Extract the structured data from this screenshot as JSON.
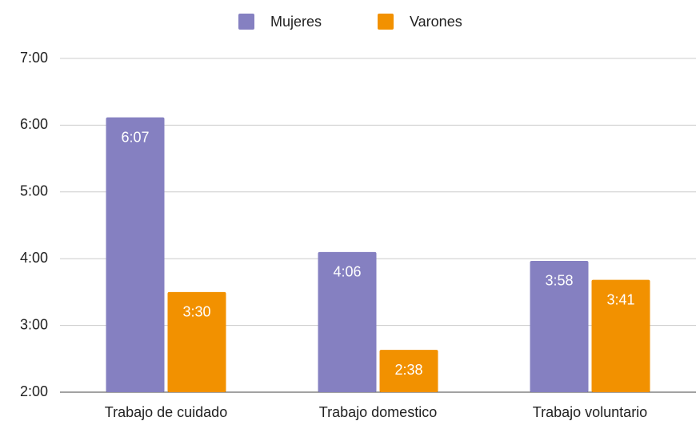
{
  "chart_data": {
    "type": "bar",
    "categories": [
      "Trabajo de cuidado",
      "Trabajo domestico",
      "Trabajo voluntario"
    ],
    "series": [
      {
        "name": "Mujeres",
        "color": "#8580c1",
        "values": [
          367,
          246,
          238
        ],
        "value_labels": [
          "6:07",
          "4:06",
          "3:58"
        ]
      },
      {
        "name": "Varones",
        "color": "#f29100",
        "values": [
          210,
          158,
          221
        ],
        "value_labels": [
          "3:30",
          "2:38",
          "3:41"
        ]
      }
    ],
    "ylim": [
      120,
      420
    ],
    "yticks": [
      {
        "value": 120,
        "label": "2:00"
      },
      {
        "value": 180,
        "label": "3:00"
      },
      {
        "value": 240,
        "label": "4:00"
      },
      {
        "value": 300,
        "label": "5:00"
      },
      {
        "value": 360,
        "label": "6:00"
      },
      {
        "value": 420,
        "label": "7:00"
      }
    ],
    "grid": true,
    "legend": "top"
  }
}
